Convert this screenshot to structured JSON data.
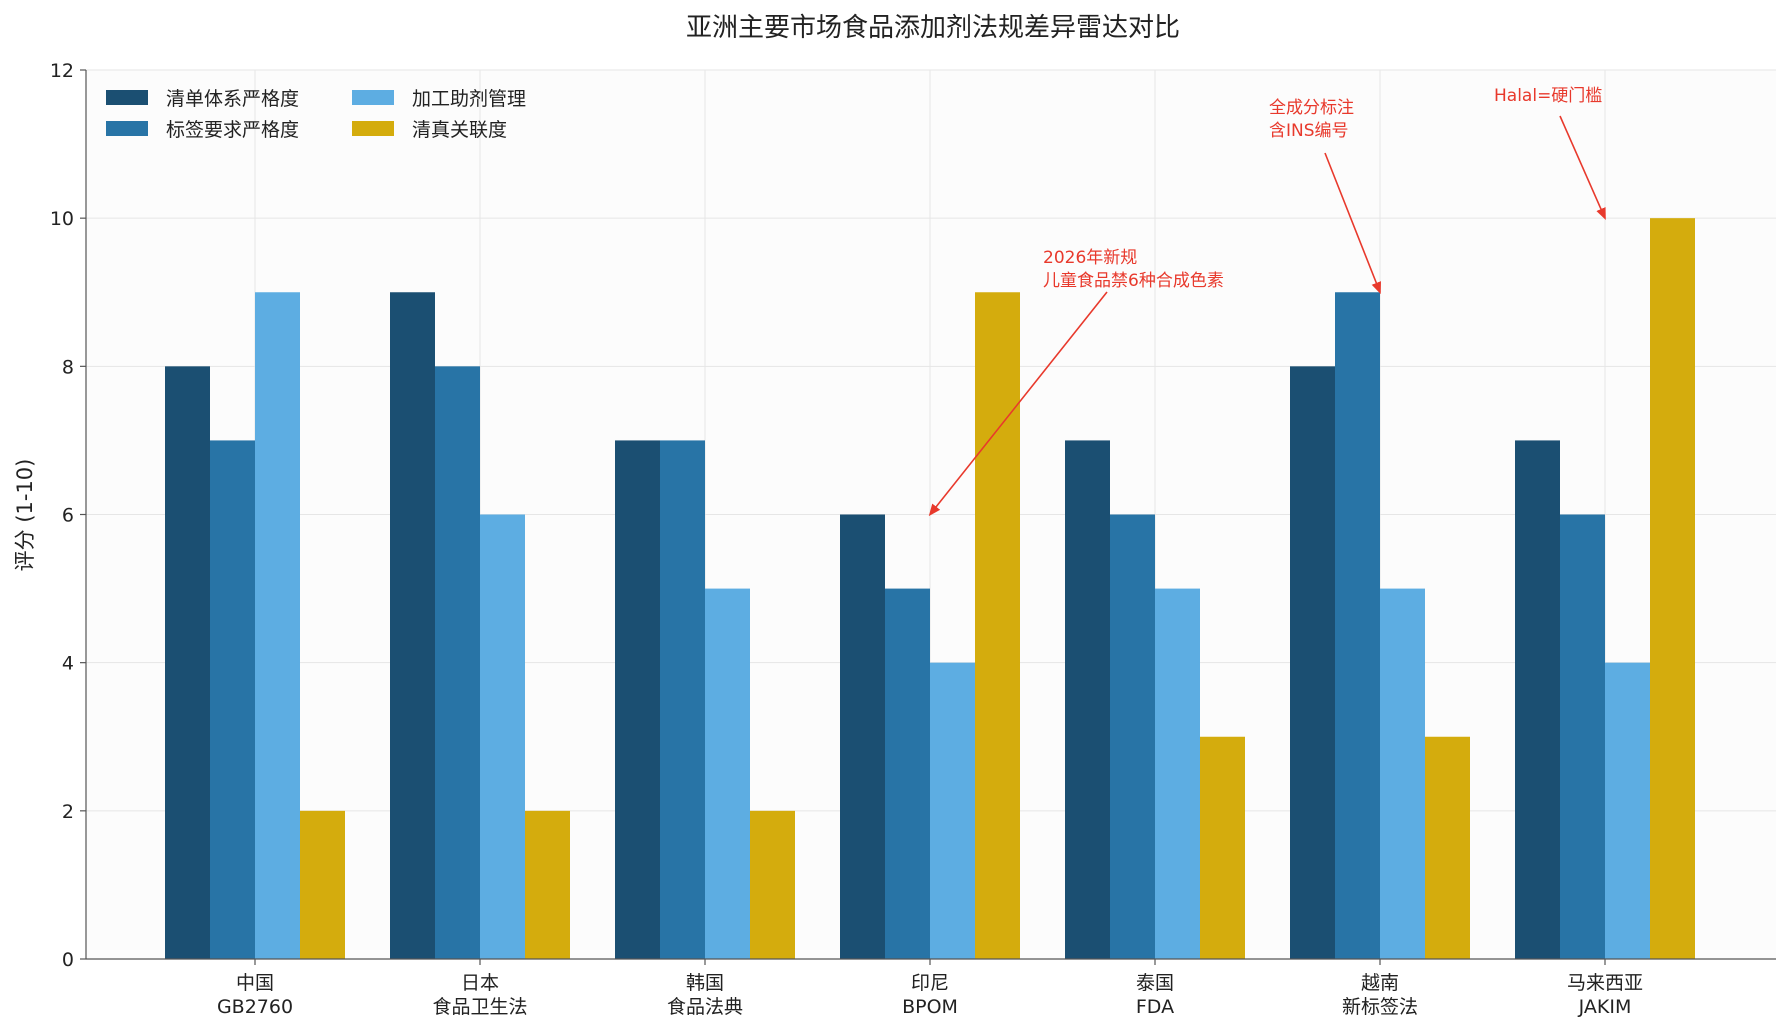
{
  "chart_data": {
    "type": "bar",
    "title": "亚洲主要市场食品添加剂法规差异雷达对比",
    "xlabel": "",
    "ylabel": "评分 (1-10)",
    "ylim": [
      0,
      12
    ],
    "yticks": [
      0,
      2,
      4,
      6,
      8,
      10,
      12
    ],
    "grid": true,
    "legend_position": "top-left",
    "categories": [
      [
        "中国",
        "GB2760"
      ],
      [
        "日本",
        "食品卫生法"
      ],
      [
        "韩国",
        "食品法典"
      ],
      [
        "印尼",
        "BPOM"
      ],
      [
        "泰国",
        "FDA"
      ],
      [
        "越南",
        "新标签法"
      ],
      [
        "马来西亚",
        "JAKIM"
      ]
    ],
    "series": [
      {
        "name": "清单体系严格度",
        "color": "#1b4f72",
        "values": [
          8,
          9,
          7,
          6,
          7,
          8,
          7
        ]
      },
      {
        "name": "标签要求严格度",
        "color": "#2874a6",
        "values": [
          7,
          8,
          7,
          5,
          6,
          9,
          6
        ]
      },
      {
        "name": "加工助剂管理",
        "color": "#5dade2",
        "values": [
          9,
          6,
          5,
          4,
          5,
          5,
          4
        ]
      },
      {
        "name": "清真关联度",
        "color": "#d4ac0d",
        "values": [
          2,
          2,
          2,
          9,
          3,
          3,
          10
        ]
      }
    ],
    "annotations": [
      {
        "lines": [
          "2026年新规",
          "儿童食品禁6种合成色素"
        ],
        "target_category": 3,
        "target_value": 6
      },
      {
        "lines": [
          "全成分标注",
          "含INS编号"
        ],
        "target_category": 5,
        "target_value": 9
      },
      {
        "lines": [
          "Halal=硬门槛"
        ],
        "target_category": 6,
        "target_value": 10
      }
    ],
    "annotation_color": "#e8392c"
  }
}
